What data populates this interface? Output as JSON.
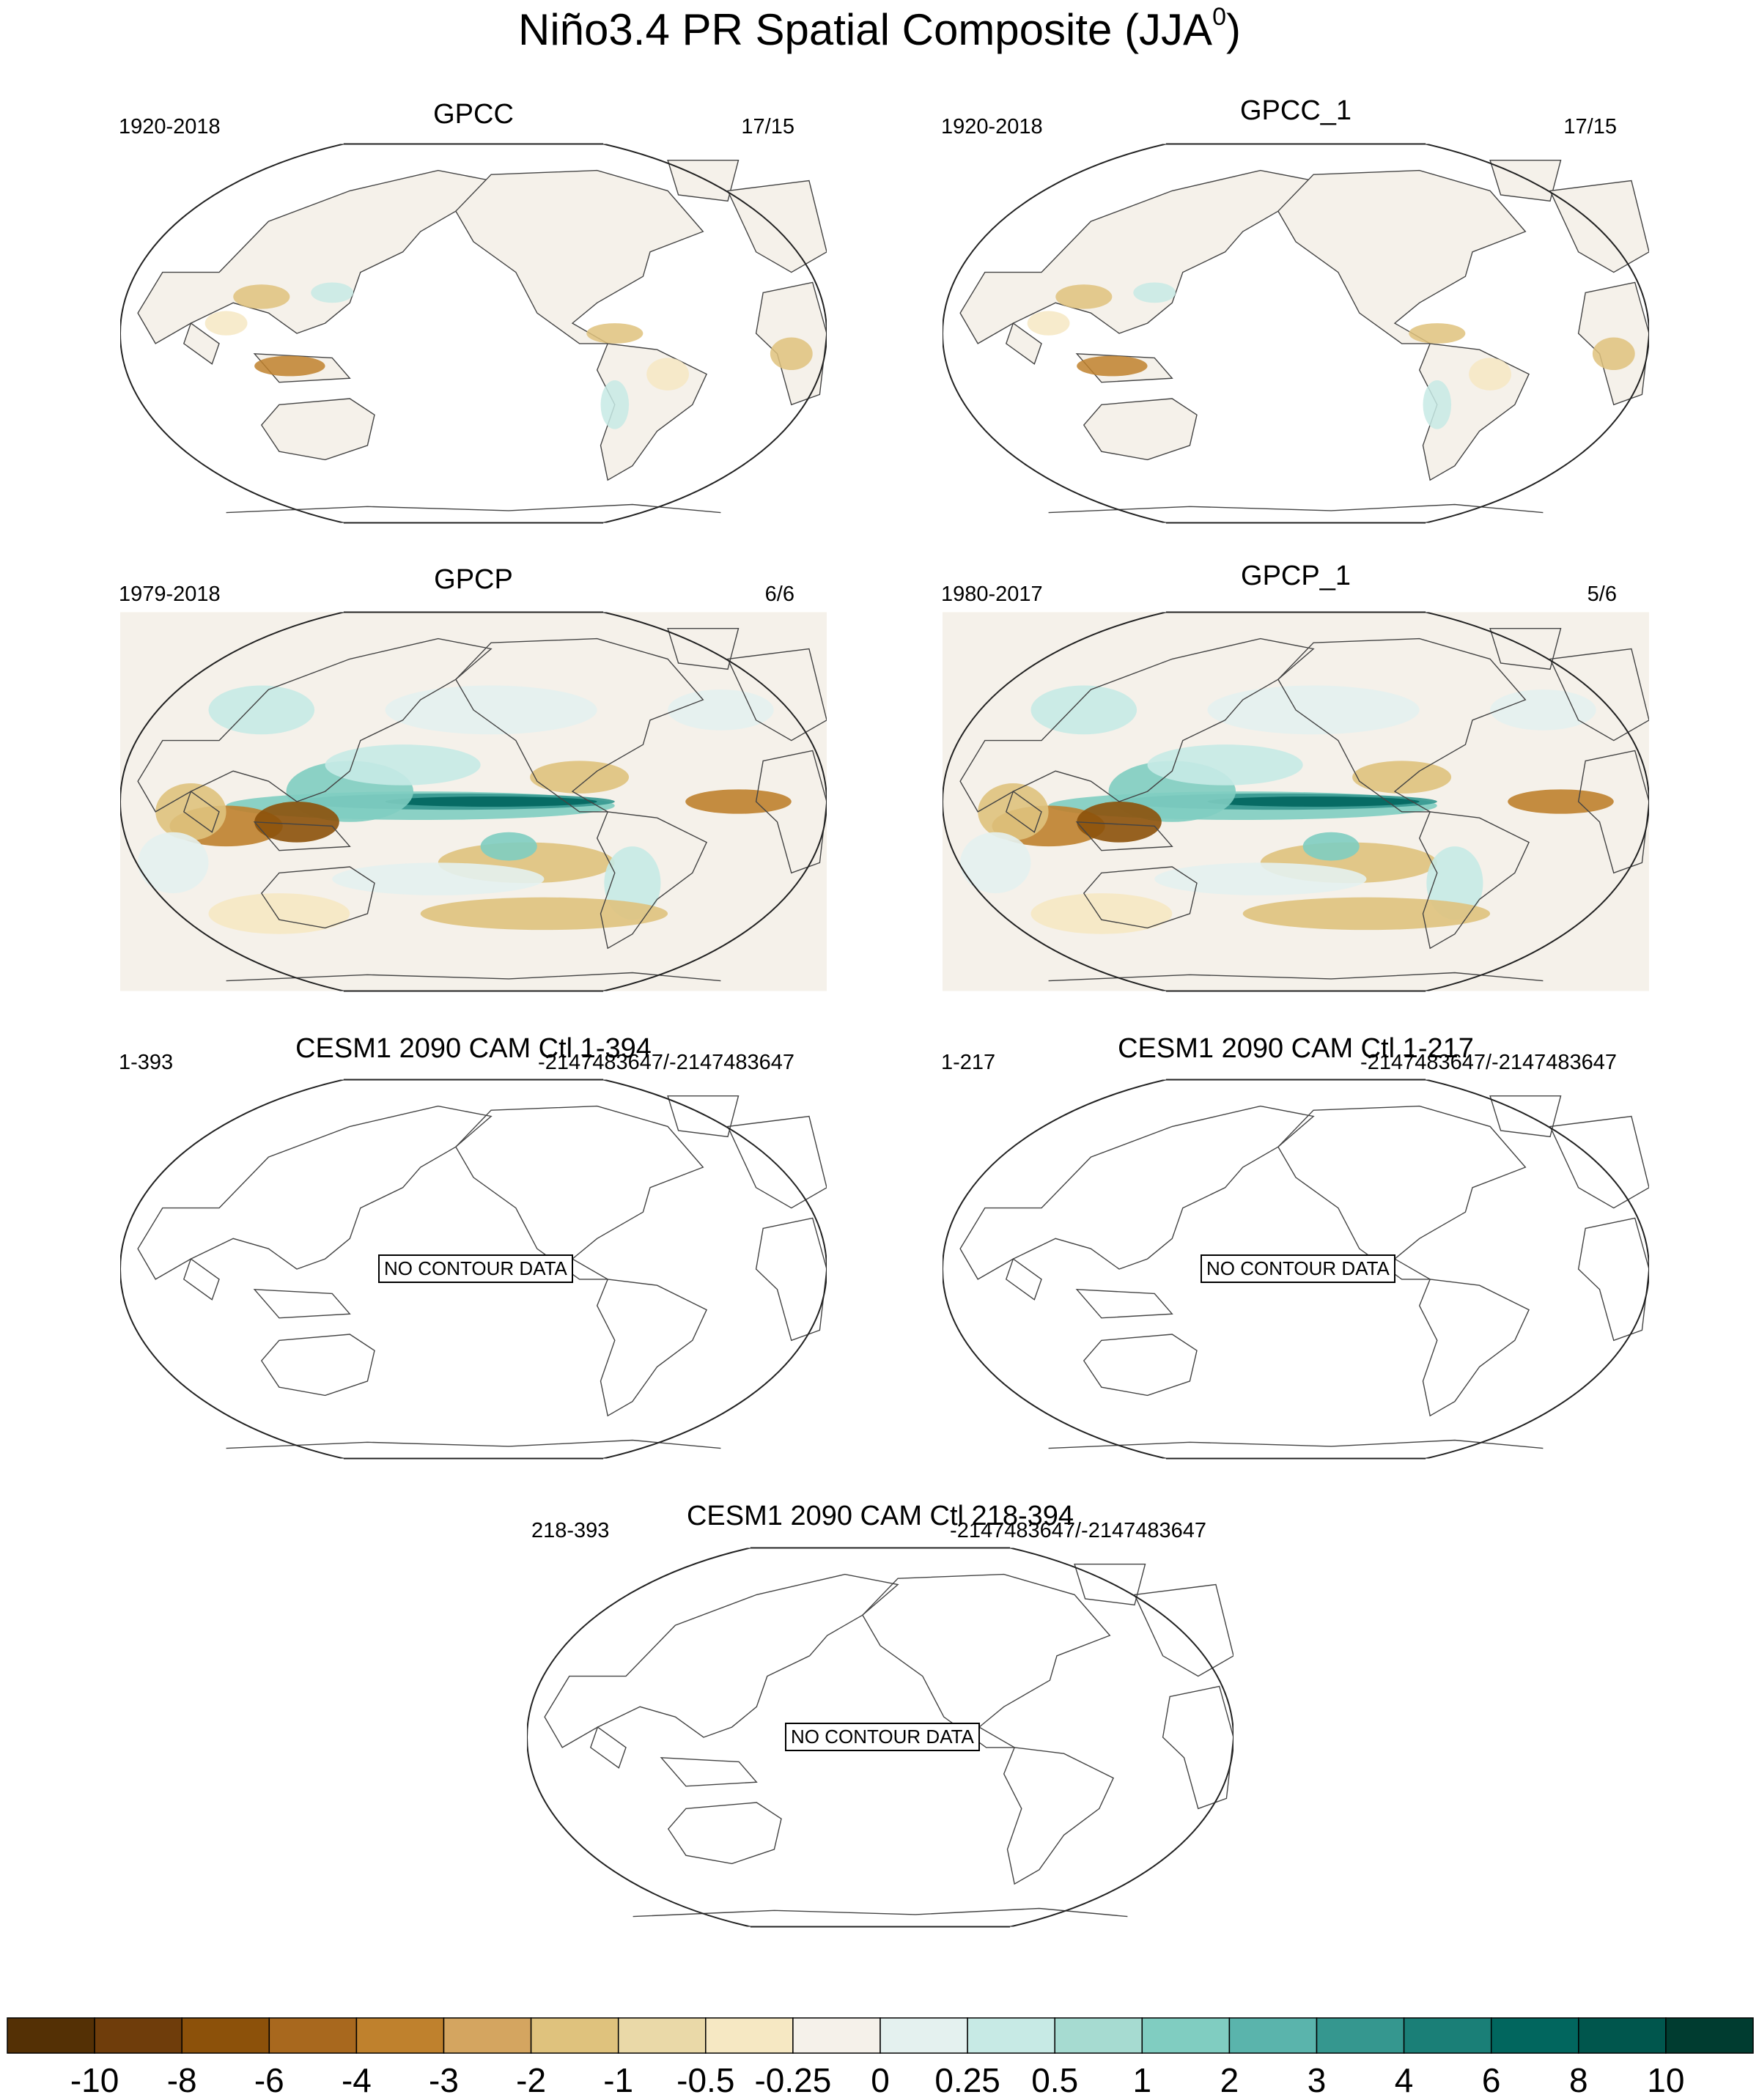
{
  "title": {
    "main": "Niño3.4 PR Spatial Composite (JJA",
    "superscript": "0",
    "close": ")"
  },
  "panels": [
    {
      "title": "GPCC",
      "years": "1920-2018",
      "count": "17/15",
      "style": "landonly",
      "no_data": ""
    },
    {
      "title": "GPCC_1",
      "years": "1920-2018",
      "count": "17/15",
      "style": "landonly",
      "no_data": ""
    },
    {
      "title": "GPCP",
      "years": "1979-2018",
      "count": "6/6",
      "style": "full",
      "no_data": ""
    },
    {
      "title": "GPCP_1",
      "years": "1980-2017",
      "count": "5/6",
      "style": "full",
      "no_data": ""
    },
    {
      "title": "CESM1 2090 CAM Ctl 1-394",
      "years": "1-393",
      "count": "-2147483647/-2147483647",
      "style": "empty",
      "no_data": "NO CONTOUR DATA"
    },
    {
      "title": "CESM1 2090 CAM Ctl 1-217",
      "years": "1-217",
      "count": "-2147483647/-2147483647",
      "style": "empty",
      "no_data": "NO CONTOUR DATA"
    },
    {
      "title": "CESM1 2090 CAM Ctl 218-394",
      "years": "218-393",
      "count": "-2147483647/-2147483647",
      "style": "empty",
      "no_data": "NO CONTOUR DATA"
    }
  ],
  "colorbar": {
    "labels": [
      "-10",
      "-8",
      "-6",
      "-4",
      "-3",
      "-2",
      "-1",
      "-0.5",
      "-0.25",
      "0",
      "0.25",
      "0.5",
      "1",
      "2",
      "3",
      "4",
      "6",
      "8",
      "10"
    ],
    "colors": [
      "#543005",
      "#6f3d0b",
      "#8c510a",
      "#a8681e",
      "#bf812d",
      "#d4a560",
      "#dfc27d",
      "#ead9a8",
      "#f6e8c3",
      "#f5f1ea",
      "#e4f1ef",
      "#c7eae5",
      "#a6dbd1",
      "#80cdc1",
      "#5ab4ac",
      "#35978f",
      "#1a7f77",
      "#01665e",
      "#00564d",
      "#003c30"
    ]
  }
}
